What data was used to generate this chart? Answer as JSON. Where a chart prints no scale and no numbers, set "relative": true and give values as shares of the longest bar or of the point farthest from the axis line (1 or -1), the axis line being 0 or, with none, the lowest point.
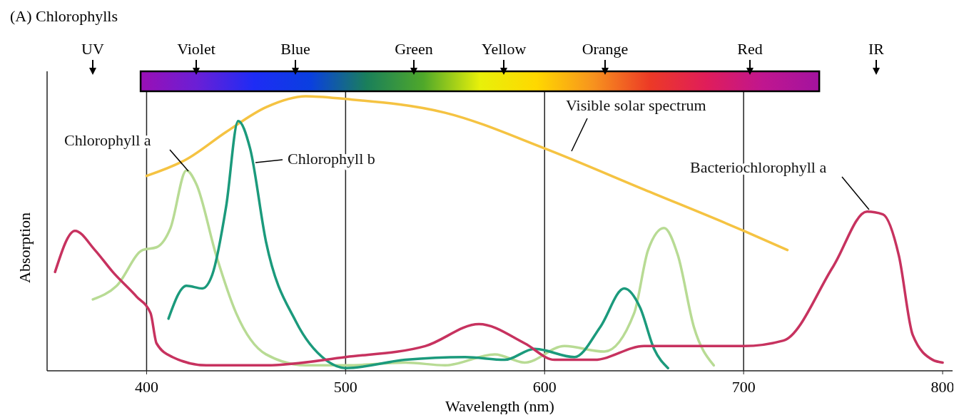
{
  "chart_data": {
    "type": "line",
    "title": "(A) Chlorophylls",
    "xlabel": "Wavelength (nm)",
    "ylabel": "Absorption",
    "relative": true,
    "xlim": [
      350,
      805
    ],
    "xticks": [
      400,
      500,
      600,
      700,
      800
    ],
    "annotations": [
      "UV",
      "Violet",
      "Blue",
      "Green",
      "Yellow",
      "Orange",
      "Red",
      "IR"
    ],
    "ref_lines": [
      {
        "axis": "x",
        "value": 400
      },
      {
        "axis": "x",
        "value": 500
      },
      {
        "axis": "x",
        "value": 600
      },
      {
        "axis": "x",
        "value": 700
      }
    ],
    "series": [
      {
        "name": "Visible solar spectrum",
        "color": "#f5c342",
        "x": [
          400,
          420,
          440,
          460,
          480,
          500,
          550,
          600,
          650,
          700,
          722
        ],
        "values": [
          0.71,
          0.77,
          0.87,
          0.96,
          1.0,
          0.99,
          0.94,
          0.81,
          0.66,
          0.51,
          0.44
        ]
      },
      {
        "name": "Chlorophyll a",
        "color": "#b8db94",
        "x": [
          373,
          385,
          398,
          405,
          412,
          420,
          425,
          435,
          445,
          460,
          480,
          500,
          530,
          550,
          575,
          590,
          610,
          630,
          645,
          652,
          660,
          667,
          675,
          685
        ],
        "values": [
          0.26,
          0.31,
          0.44,
          0.45,
          0.52,
          0.73,
          0.68,
          0.42,
          0.21,
          0.06,
          0.02,
          0.02,
          0.03,
          0.02,
          0.06,
          0.03,
          0.09,
          0.07,
          0.21,
          0.44,
          0.52,
          0.42,
          0.16,
          0.02
        ]
      },
      {
        "name": "Chlorophyll b",
        "color": "#1b9a7c",
        "x": [
          411,
          420,
          428,
          433,
          440,
          446,
          452,
          460,
          475,
          490,
          500,
          530,
          560,
          580,
          595,
          615,
          628,
          640,
          648,
          655,
          662
        ],
        "values": [
          0.19,
          0.31,
          0.3,
          0.35,
          0.6,
          0.91,
          0.81,
          0.47,
          0.18,
          0.04,
          0.01,
          0.04,
          0.05,
          0.04,
          0.08,
          0.05,
          0.16,
          0.3,
          0.23,
          0.08,
          0.01
        ]
      },
      {
        "name": "Bacteriochlorophyll a",
        "color": "#c7325f",
        "x": [
          354,
          364,
          374,
          383,
          395,
          402,
          405,
          413,
          430,
          460,
          500,
          540,
          567,
          590,
          605,
          625,
          650,
          700,
          720,
          745,
          762,
          770,
          778,
          785,
          795,
          800
        ],
        "values": [
          0.36,
          0.51,
          0.44,
          0.36,
          0.27,
          0.21,
          0.1,
          0.05,
          0.02,
          0.02,
          0.05,
          0.09,
          0.17,
          0.1,
          0.04,
          0.04,
          0.09,
          0.09,
          0.11,
          0.38,
          0.58,
          0.57,
          0.42,
          0.13,
          0.04,
          0.03
        ]
      }
    ]
  }
}
